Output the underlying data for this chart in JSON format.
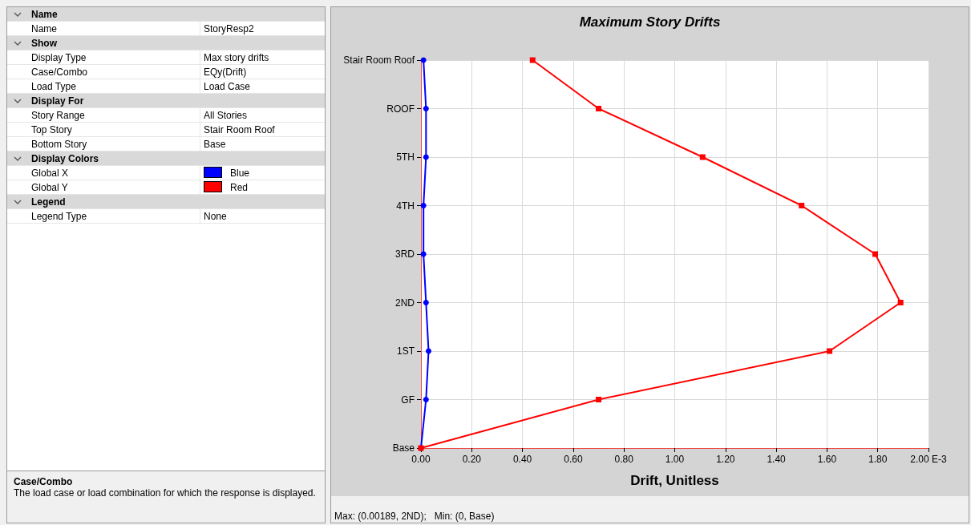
{
  "chart_data": [
    {
      "type": "other",
      "y_categories": [
        "Name",
        "Name",
        "Show",
        "Display Type",
        "Case/Combo",
        "Load Type",
        "Display For",
        "Story Range",
        "Top Story",
        "Bottom Story",
        "Display Colors",
        "Global X",
        "Global Y",
        "Legend",
        "Legend Type"
      ],
      "cell_labels": [
        [
          null
        ],
        [
          "StoryResp2"
        ],
        [
          null
        ],
        [
          "Max story drifts"
        ],
        [
          "EQy(Drift)"
        ],
        [
          "Load Case"
        ],
        [
          null
        ],
        [
          "All Stories"
        ],
        [
          "Stair Room Roof"
        ],
        [
          "Base"
        ],
        [
          null
        ],
        [
          "Blue"
        ],
        [
          "Red"
        ],
        [
          null
        ],
        [
          "None"
        ]
      ],
      "colors": [
        null,
        null,
        null,
        null,
        null,
        null,
        null,
        null,
        null,
        null,
        null,
        "#0000ff",
        "#ff0000",
        null,
        null
      ],
      "annotations": [
        "Case/Combo",
        "The load case or load combination for which the response is displayed."
      ]
    },
    {
      "type": "line",
      "orientation": "horizontal",
      "title": "Maximum Story Drifts",
      "xlabel": "Drift, Unitless",
      "categories": [
        "Stair Room Roof",
        "ROOF",
        "5TH",
        "4TH",
        "3RD",
        "2ND",
        "1ST",
        "GF",
        "Base"
      ],
      "series": [
        {
          "color": "#0000ff",
          "marker": "circle",
          "values": [
            0.01,
            0.02,
            0.02,
            0.01,
            0.01,
            0.02,
            0.03,
            0.02,
            0
          ]
        },
        {
          "color": "#ff0000",
          "marker": "square",
          "values": [
            0.44,
            0.7,
            1.11,
            1.5,
            1.79,
            1.89,
            1.61,
            0.7,
            0
          ]
        }
      ],
      "xlim": [
        0,
        2
      ],
      "xticks": [
        {
          "value": 0,
          "label": "0.00"
        },
        {
          "value": 0.2,
          "label": "0.20"
        },
        {
          "value": 0.4,
          "label": "0.40"
        },
        {
          "value": 0.6,
          "label": "0.60"
        },
        {
          "value": 0.8,
          "label": "0.80"
        },
        {
          "value": 1.0,
          "label": "1.00"
        },
        {
          "value": 1.2,
          "label": "1.20"
        },
        {
          "value": 1.4,
          "label": "1.40"
        },
        {
          "value": 1.6,
          "label": "1.60"
        },
        {
          "value": 1.8,
          "label": "1.80"
        },
        {
          "value": 2.0,
          "label": "2.00 E-3"
        }
      ],
      "grid": true,
      "line_style": "solid",
      "annotations": [
        "Max: (0.00189, 2ND);   Min: (0, Base)"
      ]
    }
  ]
}
